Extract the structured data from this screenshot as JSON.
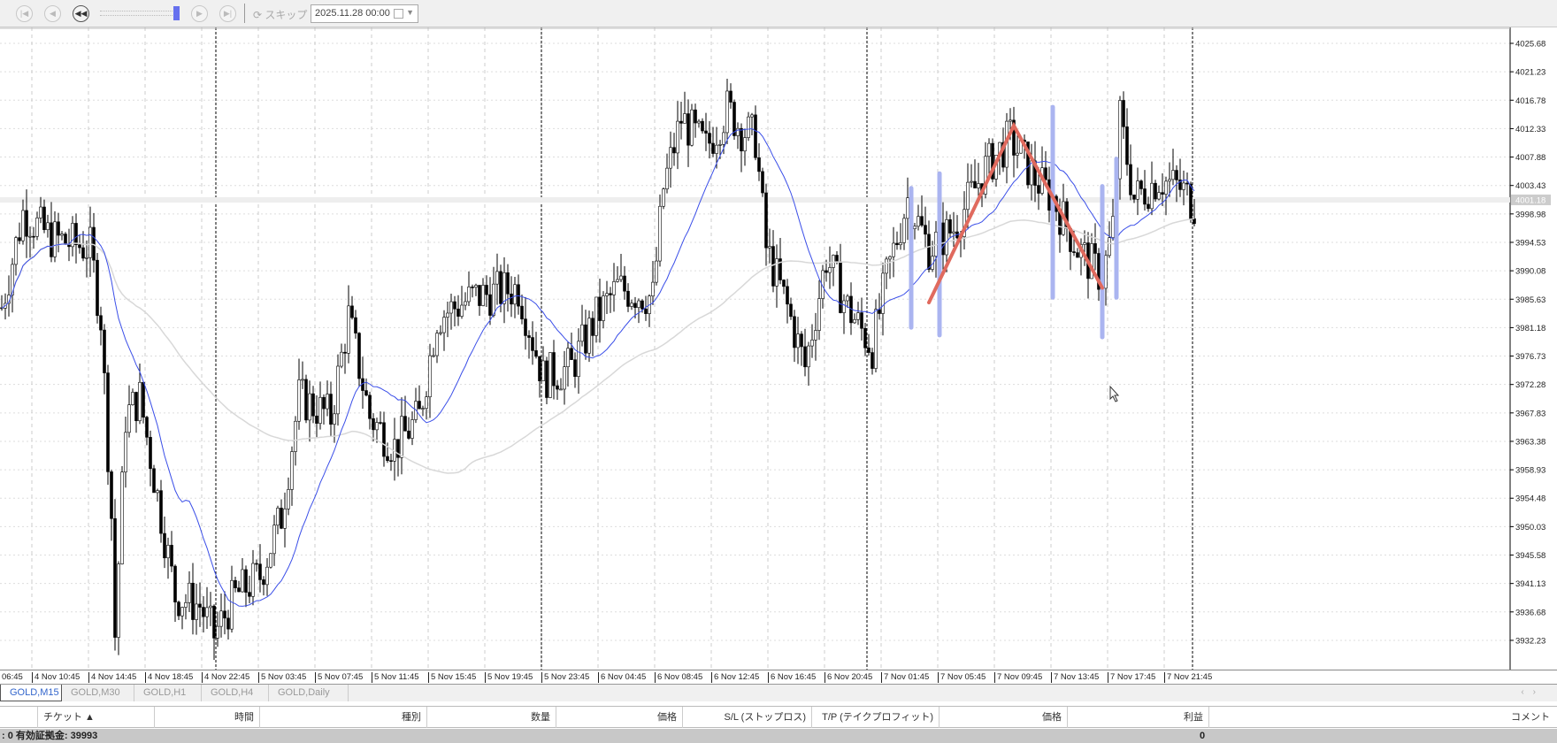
{
  "toolbar": {
    "buttons": [
      "step-start",
      "step-back",
      "play-back",
      "step-forward",
      "step-end"
    ],
    "skip_label": "スキップ",
    "date_value": "2025.11.28 00:00",
    "speed_slider_level": 1.0
  },
  "chart": {
    "symbol": "GOLD",
    "timeframe": "M15",
    "current_price": "4001.18",
    "colors": {
      "candle": "#000000",
      "ma_fast": "#3a4ee8",
      "ma_slow": "#d8d8d8",
      "trend_line": "#e06a5e",
      "marker": "#aab4f0",
      "current_price": "#cccccc"
    },
    "price_labels": [
      "4025.68",
      "4021.23",
      "4016.78",
      "4012.33",
      "4007.88",
      "4003.43",
      "3998.98",
      "3994.53",
      "3990.08",
      "3985.63",
      "3981.18",
      "3976.73",
      "3972.28",
      "3967.83",
      "3963.38",
      "3958.93",
      "3954.48",
      "3950.03",
      "3945.58",
      "3941.13",
      "3936.68",
      "3932.23"
    ],
    "time_labels": [
      "06:45",
      "4 Nov 10:45",
      "4 Nov 14:45",
      "4 Nov 18:45",
      "4 Nov 22:45",
      "5 Nov 03:45",
      "5 Nov 07:45",
      "5 Nov 11:45",
      "5 Nov 15:45",
      "5 Nov 19:45",
      "5 Nov 23:45",
      "6 Nov 04:45",
      "6 Nov 08:45",
      "6 Nov 12:45",
      "6 Nov 16:45",
      "6 Nov 20:45",
      "7 Nov 01:45",
      "7 Nov 05:45",
      "7 Nov 09:45",
      "7 Nov 13:45",
      "7 Nov 17:45",
      "7 Nov 21:45"
    ]
  },
  "chart_data": {
    "type": "candlestick",
    "ylim": [
      3928,
      4030
    ],
    "close_path": [
      [
        0,
        3984.3
      ],
      [
        6,
        3999.1
      ],
      [
        14,
        3995.2
      ],
      [
        25,
        3993.6
      ],
      [
        28,
        3982.8
      ],
      [
        31,
        3951.7
      ],
      [
        32,
        3933
      ],
      [
        35,
        3967.2
      ],
      [
        39,
        3970.3
      ],
      [
        45,
        3951.7
      ],
      [
        49,
        3939.2
      ],
      [
        56,
        3937.7
      ],
      [
        60,
        3933
      ],
      [
        66,
        3939.2
      ],
      [
        73,
        3942.3
      ],
      [
        79,
        3951.7
      ],
      [
        84,
        3970.3
      ],
      [
        93,
        3967.2
      ],
      [
        98,
        3982.8
      ],
      [
        104,
        3967.2
      ],
      [
        111,
        3962.5
      ],
      [
        118,
        3967.2
      ],
      [
        123,
        3982.8
      ],
      [
        133,
        3985.9
      ],
      [
        146,
        3987.4
      ],
      [
        153,
        3973.4
      ],
      [
        161,
        3975
      ],
      [
        168,
        3982.8
      ],
      [
        174,
        3987.4
      ],
      [
        184,
        3985.9
      ],
      [
        187,
        4003
      ],
      [
        192,
        4013.9
      ],
      [
        199,
        4009.2
      ],
      [
        205,
        4015.4
      ],
      [
        209,
        4012.3
      ],
      [
        213,
        4010.8
      ],
      [
        216,
        3993.6
      ],
      [
        222,
        3984.3
      ],
      [
        227,
        3975
      ],
      [
        233,
        3992.1
      ],
      [
        239,
        3984.3
      ],
      [
        246,
        3978.1
      ],
      [
        250,
        3989
      ],
      [
        256,
        4001.4
      ],
      [
        262,
        3993.6
      ],
      [
        269,
        3996.7
      ],
      [
        278,
        4006.1
      ],
      [
        285,
        4010.8
      ],
      [
        292,
        4004.5
      ],
      [
        297,
        4001.4
      ],
      [
        304,
        3993.6
      ],
      [
        311,
        3989
      ],
      [
        314,
        3996.7
      ],
      [
        316,
        4013.9
      ],
      [
        320,
        4001.4
      ],
      [
        327,
        4004.5
      ],
      [
        333,
        4003
      ],
      [
        337,
        4000.6
      ]
    ],
    "trend_line": [
      [
        262,
        3985.1
      ],
      [
        286,
        4012.8
      ],
      [
        311,
        3987.4
      ]
    ],
    "markers": [
      [
        257,
        4003,
        3981.2
      ],
      [
        265,
        4005.3,
        3980
      ],
      [
        297,
        4015.7,
        3985.9
      ],
      [
        311,
        4003.3,
        3979.7
      ],
      [
        315,
        4007.6,
        3985.9
      ]
    ],
    "day_separators": [
      61,
      153,
      245,
      337
    ]
  },
  "tabs": [
    {
      "label": "GOLD,M15",
      "active": true
    },
    {
      "label": "GOLD,M30"
    },
    {
      "label": "GOLD,H1"
    },
    {
      "label": "GOLD,H4"
    },
    {
      "label": "GOLD,Daily"
    }
  ],
  "columns": [
    "",
    "チケット   ▲",
    "時間",
    "種別",
    "数量",
    "価格",
    "S/L (ストップロス)",
    "T/P (テイクプロフィット)",
    "価格",
    "利益",
    "コメント"
  ],
  "status": {
    "left": ": 0   有効証拠金: 39993",
    "profit": "0"
  }
}
